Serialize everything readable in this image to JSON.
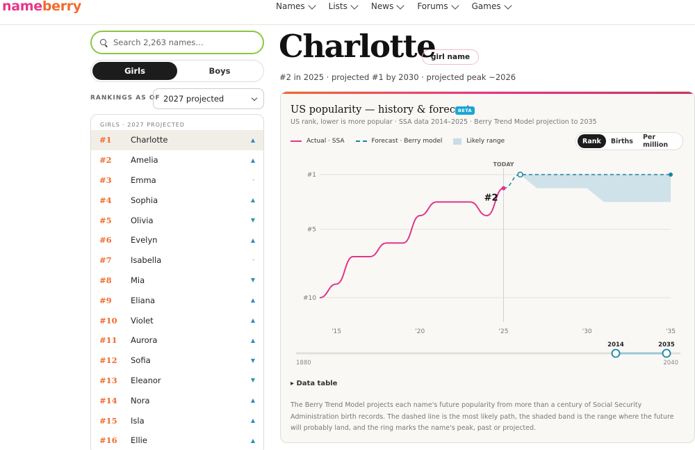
{
  "brand": {
    "logo_part1": "name",
    "logo_part2": "berry",
    "color_pink": "#e8358a",
    "color_orange": "#f26a2e"
  },
  "nav": {
    "items": [
      {
        "label": "Names"
      },
      {
        "label": "Lists"
      },
      {
        "label": "News"
      },
      {
        "label": "Forums"
      },
      {
        "label": "Games"
      }
    ]
  },
  "sidebar": {
    "search_placeholder": "Search 2,263 names…",
    "gender_toggle": {
      "options": [
        "Girls",
        "Boys"
      ],
      "selected": "Girls"
    },
    "rankings_label": "RANKINGS AS OF",
    "rankings_value": "2027 projected",
    "list_header": "GIRLS · 2027 PROJECTED",
    "names": [
      {
        "rank": "#1",
        "name": "Charlotte",
        "trend": "▲",
        "trend_dir": "up",
        "selected": true
      },
      {
        "rank": "#2",
        "name": "Amelia",
        "trend": "▲",
        "trend_dir": "up"
      },
      {
        "rank": "#3",
        "name": "Emma",
        "trend": "–",
        "trend_dir": "flat"
      },
      {
        "rank": "#4",
        "name": "Sophia",
        "trend": "▲",
        "trend_dir": "up"
      },
      {
        "rank": "#5",
        "name": "Olivia",
        "trend": "▼",
        "trend_dir": "down"
      },
      {
        "rank": "#6",
        "name": "Evelyn",
        "trend": "▲",
        "trend_dir": "up"
      },
      {
        "rank": "#7",
        "name": "Isabella",
        "trend": "–",
        "trend_dir": "flat"
      },
      {
        "rank": "#8",
        "name": "Mia",
        "trend": "▼",
        "trend_dir": "down"
      },
      {
        "rank": "#9",
        "name": "Eliana",
        "trend": "▲",
        "trend_dir": "up"
      },
      {
        "rank": "#10",
        "name": "Violet",
        "trend": "▲",
        "trend_dir": "up"
      },
      {
        "rank": "#11",
        "name": "Aurora",
        "trend": "▲",
        "trend_dir": "up"
      },
      {
        "rank": "#12",
        "name": "Sofia",
        "trend": "▼",
        "trend_dir": "down"
      },
      {
        "rank": "#13",
        "name": "Eleanor",
        "trend": "▼",
        "trend_dir": "down"
      },
      {
        "rank": "#14",
        "name": "Nora",
        "trend": "▲",
        "trend_dir": "up"
      },
      {
        "rank": "#15",
        "name": "Isla",
        "trend": "▲",
        "trend_dir": "up"
      },
      {
        "rank": "#16",
        "name": "Ellie",
        "trend": "▲",
        "trend_dir": "up"
      }
    ]
  },
  "main": {
    "name_title": "Charlotte",
    "gender_pill": "girl name",
    "subtitle": "#2 in 2025 · projected #1 by 2030 · projected peak ~2026",
    "card": {
      "title": "US popularity — history & forecast",
      "beta": "BETA",
      "subtitle": "US rank, lower is more popular · SSA data 2014–2025 · Berry Trend Model projection to 2035",
      "legend": {
        "actual": "Actual · SSA",
        "forecast": "Forecast · Berry model",
        "range": "Likely range"
      },
      "metric_tabs": [
        "Rank",
        "Births",
        "Per million"
      ],
      "metric_selected": "Rank",
      "today_label": "TODAY",
      "current_rank_label": "#2",
      "range_slider": {
        "min_label": "1880",
        "max_label": "2040",
        "from_label": "2014",
        "to_label": "2035"
      },
      "data_table_label": "▸ Data table",
      "explanation": "The Berry Trend Model projects each name's future popularity from more than a century of Social Security Administration birth records. The dashed line is the most likely path, the shaded band is the range where the future will probably land, and the ring marks the name's peak, past or projected."
    }
  },
  "chart_data": {
    "type": "line",
    "y_axis": {
      "label": "US rank",
      "ticks": [
        "#1",
        "#5",
        "#10"
      ],
      "tick_values": [
        1,
        5,
        10
      ],
      "range": [
        1,
        10
      ],
      "inverted": true
    },
    "x_axis": {
      "ticks": [
        "'15",
        "'20",
        "'25",
        "'30",
        "'35"
      ],
      "tick_values": [
        2015,
        2020,
        2025,
        2030,
        2035
      ],
      "range": [
        2014,
        2035
      ]
    },
    "today_year": 2025,
    "series": [
      {
        "name": "Actual · SSA",
        "color": "#e0358a",
        "x": [
          2014,
          2015,
          2016,
          2017,
          2018,
          2019,
          2020,
          2021,
          2022,
          2023,
          2024,
          2025
        ],
        "y": [
          10,
          9,
          7,
          7,
          6,
          6,
          4,
          3,
          3,
          3,
          4,
          2
        ]
      },
      {
        "name": "Forecast · Berry model",
        "color": "#1983a8",
        "x": [
          2025,
          2026,
          2027,
          2028,
          2029,
          2030,
          2031,
          2032,
          2033,
          2034,
          2035
        ],
        "y": [
          2,
          1,
          1,
          1,
          1,
          1,
          1,
          1,
          1,
          1,
          1
        ]
      }
    ],
    "band": {
      "name": "Likely range",
      "color": "#c8dde6",
      "x": [
        2026,
        2027,
        2028,
        2029,
        2030,
        2031,
        2032,
        2033,
        2034,
        2035
      ],
      "low": [
        1,
        1,
        1,
        1,
        1,
        1,
        1,
        1,
        1,
        1
      ],
      "high": [
        1,
        2,
        2,
        2,
        2,
        3,
        3,
        3,
        3,
        3
      ]
    },
    "grid": true
  }
}
